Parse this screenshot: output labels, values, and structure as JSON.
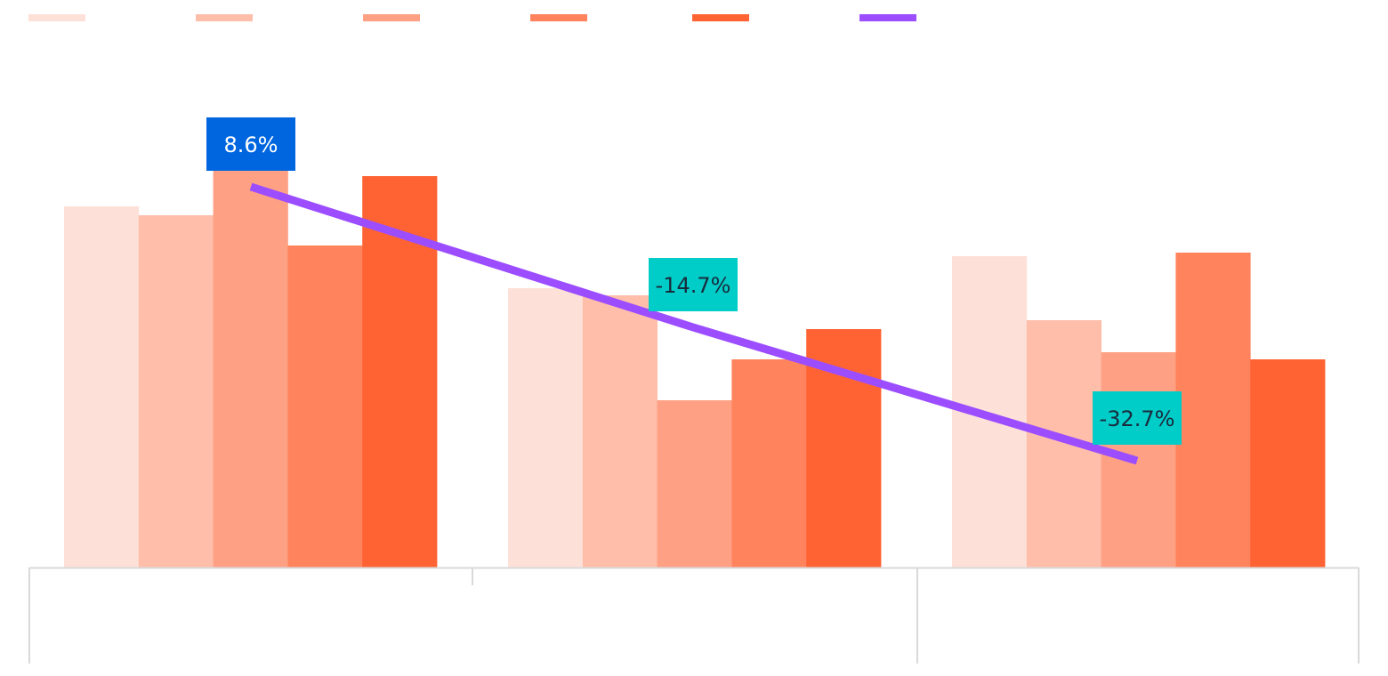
{
  "chart_data": {
    "type": "bar",
    "categories": [
      "",
      "",
      ""
    ],
    "series": [
      {
        "color": "#FDE1D8",
        "values": [
          406,
          314,
          350
        ]
      },
      {
        "color": "#FEBEAA",
        "values": [
          396,
          306,
          278
        ]
      },
      {
        "color": "#FEA083",
        "values": [
          446,
          188,
          242
        ]
      },
      {
        "color": "#FF845E",
        "values": [
          362,
          234,
          354
        ]
      },
      {
        "color": "#FF6333",
        "values": [
          440,
          268,
          234
        ]
      }
    ],
    "line": {
      "color": "#9B4DFF",
      "values": [
        428,
        270,
        120
      ],
      "labels": [
        "8.6%",
        "-14.7%",
        "-32.7%"
      ],
      "label_colors": [
        "#0066E0",
        "#00CCC8",
        "#00CCC8"
      ],
      "label_text_colors": [
        "#FFFFFF",
        "#1A2B3C",
        "#1A2B3C"
      ]
    },
    "ylim": [
      0,
      638
    ],
    "legend": "top-left",
    "grid": false
  }
}
